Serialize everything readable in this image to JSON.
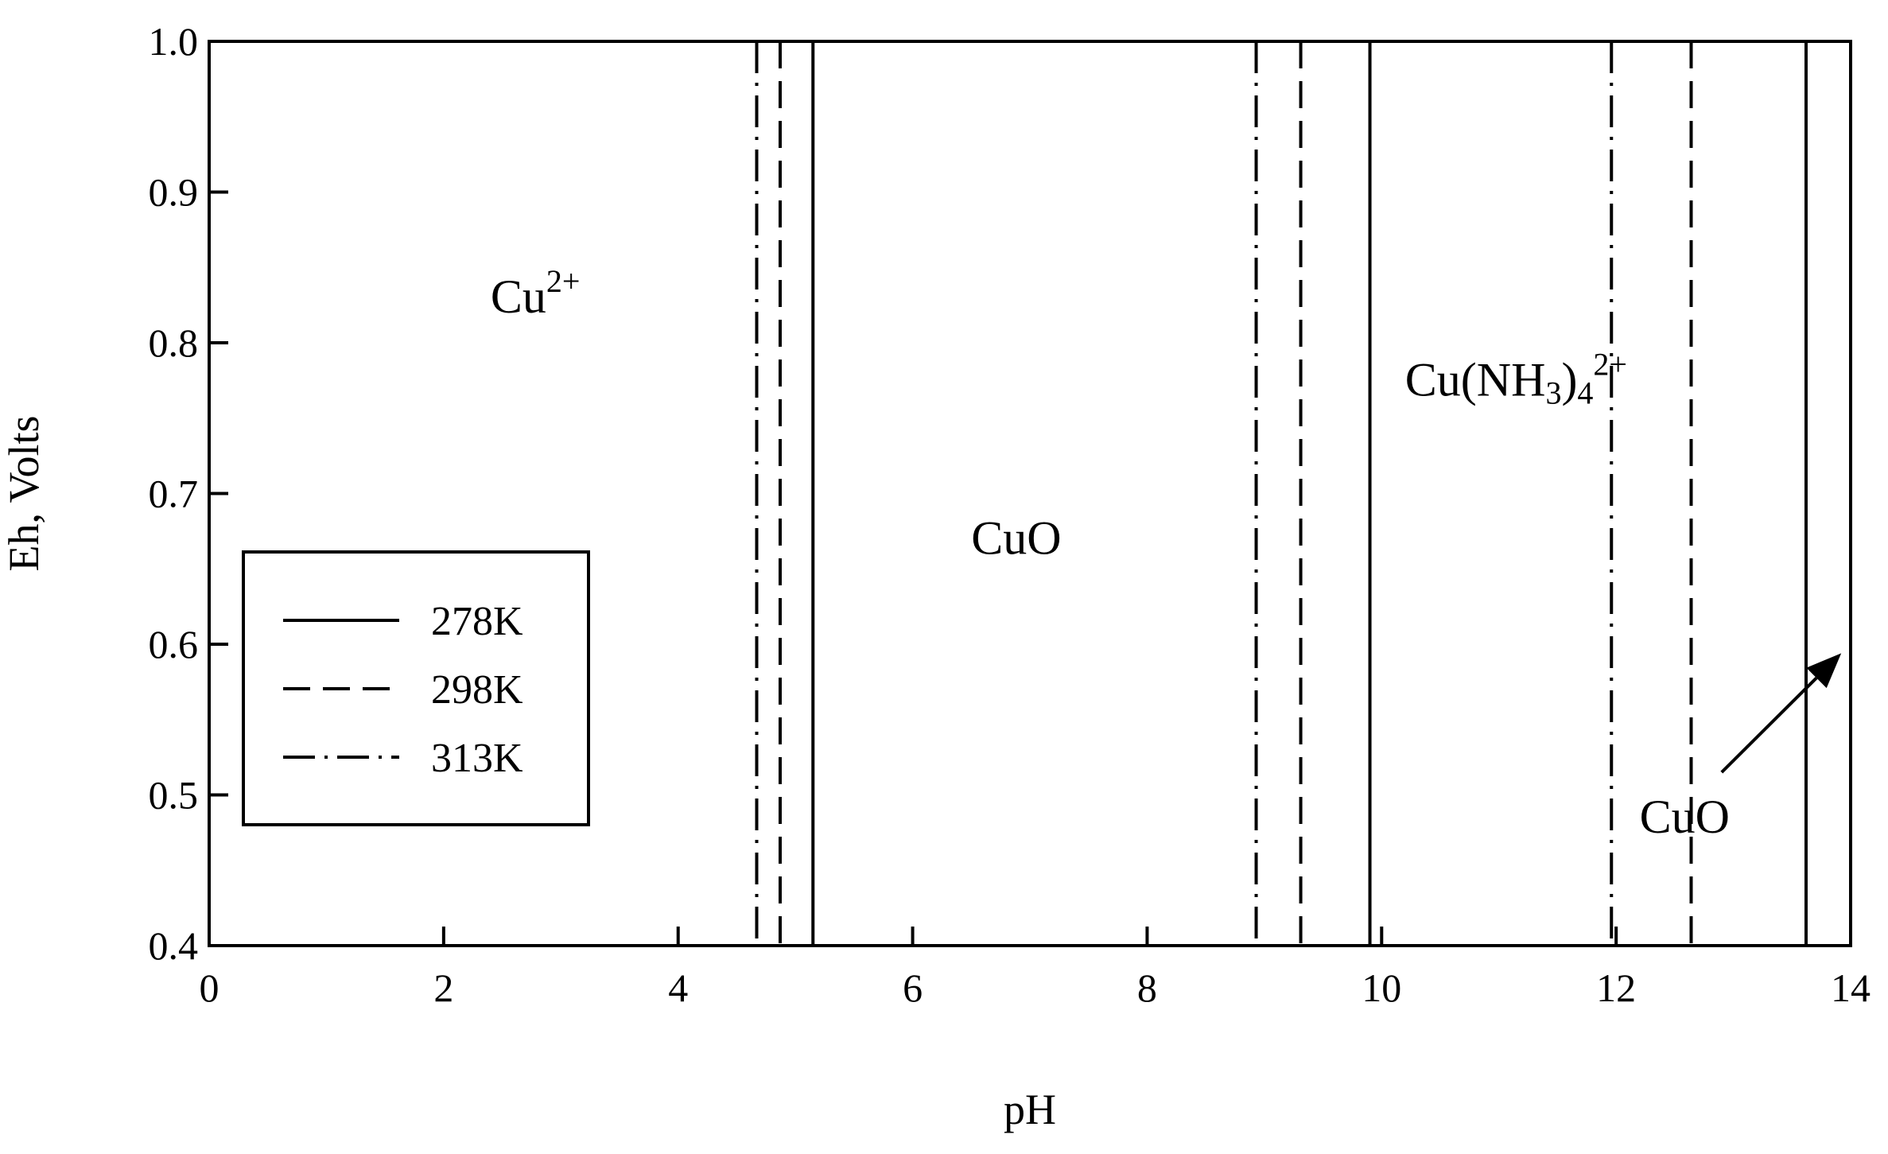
{
  "chart_data": {
    "type": "line",
    "title": "",
    "xlabel": "pH",
    "ylabel": "Eh, Volts",
    "xlim": [
      0,
      14
    ],
    "ylim": [
      0.4,
      1.0
    ],
    "x_ticks": [
      0,
      2,
      4,
      6,
      8,
      10,
      12,
      14
    ],
    "y_ticks": [
      0.4,
      0.5,
      0.6,
      0.7,
      0.8,
      0.9,
      1.0
    ],
    "x_tick_labels": [
      "0",
      "2",
      "4",
      "6",
      "8",
      "10",
      "12",
      "14"
    ],
    "y_tick_labels": [
      "0.4",
      "0.5",
      "0.6",
      "0.7",
      "0.8",
      "0.9",
      "1.0"
    ],
    "grid": false,
    "legend": {
      "placement": "middle-left"
    },
    "series": [
      {
        "name": "278K",
        "style": "solid",
        "vertical_lines_at_pH": [
          5.15,
          9.9,
          13.62
        ]
      },
      {
        "name": "298K",
        "style": "dashed",
        "vertical_lines_at_pH": [
          4.87,
          9.31,
          12.64
        ]
      },
      {
        "name": "313K",
        "style": "dashdot",
        "vertical_lines_at_pH": [
          4.67,
          8.93,
          11.96
        ]
      }
    ],
    "annotations": [
      {
        "text": "Cu",
        "sup": "2+",
        "x": 2.4,
        "y": 0.82
      },
      {
        "text": "CuO",
        "x": 6.5,
        "y": 0.66
      },
      {
        "text": "Cu(NH",
        "sub": "3",
        "text2": ")",
        "sub2": "4",
        "sup": "2+",
        "x": 10.2,
        "y": 0.765
      },
      {
        "text": "CuO",
        "x": 12.2,
        "y": 0.475
      }
    ],
    "arrow": {
      "from": [
        12.9,
        0.515
      ],
      "to": [
        13.92,
        0.594
      ]
    }
  }
}
